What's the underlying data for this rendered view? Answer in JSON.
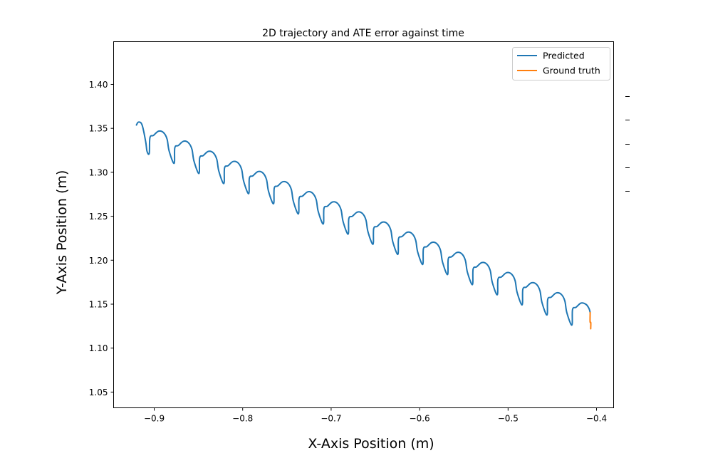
{
  "chart_data": {
    "type": "line",
    "title": "2D trajectory and ATE error against time",
    "xlabel": "X-Axis Position (m)",
    "ylabel": "Y-Axis Position (m)",
    "xlim": [
      -0.9459,
      -0.3807
    ],
    "ylim": [
      1.0321,
      1.4486
    ],
    "grid": false,
    "legend_position": "top-right",
    "xticks": [
      {
        "value": -0.9,
        "label": "−0.9"
      },
      {
        "value": -0.8,
        "label": "−0.8"
      },
      {
        "value": -0.7,
        "label": "−0.7"
      },
      {
        "value": -0.6,
        "label": "−0.6"
      },
      {
        "value": -0.5,
        "label": "−0.5"
      },
      {
        "value": -0.4,
        "label": "−0.4"
      }
    ],
    "yticks": [
      {
        "value": 1.05,
        "label": "1.05"
      },
      {
        "value": 1.1,
        "label": "1.10"
      },
      {
        "value": 1.15,
        "label": "1.15"
      },
      {
        "value": 1.2,
        "label": "1.20"
      },
      {
        "value": 1.25,
        "label": "1.25"
      },
      {
        "value": 1.3,
        "label": "1.30"
      },
      {
        "value": 1.35,
        "label": "1.35"
      },
      {
        "value": 1.4,
        "label": "1.40"
      }
    ],
    "series": [
      {
        "name": "Predicted",
        "color": "#1f77b4",
        "x": [
          -0.9201,
          -0.9177,
          -0.9137,
          -0.9097,
          -0.9081,
          -0.9056,
          -0.9048,
          -0.9008,
          -0.8951,
          -0.8895,
          -0.8855,
          -0.8831,
          -0.8775,
          -0.8767,
          -0.8727,
          -0.867,
          -0.8614,
          -0.8574,
          -0.855,
          -0.8494,
          -0.8486,
          -0.8446,
          -0.8389,
          -0.8333,
          -0.8293,
          -0.8269,
          -0.8213,
          -0.8205,
          -0.8165,
          -0.8108,
          -0.8052,
          -0.8012,
          -0.7988,
          -0.7932,
          -0.7924,
          -0.7884,
          -0.7827,
          -0.7771,
          -0.7731,
          -0.7707,
          -0.7651,
          -0.7643,
          -0.7603,
          -0.7546,
          -0.749,
          -0.745,
          -0.7426,
          -0.737,
          -0.7362,
          -0.7322,
          -0.7265,
          -0.7209,
          -0.7169,
          -0.7145,
          -0.7089,
          -0.7081,
          -0.7041,
          -0.6984,
          -0.6928,
          -0.6888,
          -0.6864,
          -0.6808,
          -0.68,
          -0.676,
          -0.6703,
          -0.6647,
          -0.6607,
          -0.6583,
          -0.6527,
          -0.6519,
          -0.6479,
          -0.6422,
          -0.6366,
          -0.6326,
          -0.6302,
          -0.6246,
          -0.6238,
          -0.6198,
          -0.6141,
          -0.6085,
          -0.6045,
          -0.6021,
          -0.5965,
          -0.5957,
          -0.5917,
          -0.586,
          -0.5804,
          -0.5764,
          -0.574,
          -0.5684,
          -0.5676,
          -0.5636,
          -0.5579,
          -0.5523,
          -0.5483,
          -0.5459,
          -0.5403,
          -0.5395,
          -0.5355,
          -0.5298,
          -0.5242,
          -0.5202,
          -0.5178,
          -0.5122,
          -0.5114,
          -0.5074,
          -0.5017,
          -0.4961,
          -0.4921,
          -0.4897,
          -0.4841,
          -0.4833,
          -0.4793,
          -0.4736,
          -0.468,
          -0.464,
          -0.4616,
          -0.456,
          -0.4552,
          -0.4512,
          -0.4455,
          -0.4399,
          -0.4359,
          -0.4335,
          -0.4279,
          -0.4271,
          -0.4231,
          -0.4174,
          -0.4118,
          -0.4085,
          -0.4072
        ],
        "y": [
          1.3538,
          1.3571,
          1.3538,
          1.3352,
          1.3238,
          1.3217,
          1.3395,
          1.342,
          1.3468,
          1.3452,
          1.3379,
          1.3241,
          1.3102,
          1.328,
          1.3305,
          1.3353,
          1.3337,
          1.3264,
          1.3126,
          1.2987,
          1.3165,
          1.319,
          1.3238,
          1.3222,
          1.3149,
          1.3011,
          1.2872,
          1.305,
          1.3075,
          1.3123,
          1.3107,
          1.3034,
          1.2896,
          1.2757,
          1.2935,
          1.296,
          1.3008,
          1.2992,
          1.2919,
          1.2781,
          1.2642,
          1.282,
          1.2845,
          1.2893,
          1.2877,
          1.2804,
          1.2666,
          1.2527,
          1.2705,
          1.273,
          1.2778,
          1.2762,
          1.2689,
          1.2551,
          1.2412,
          1.259,
          1.2615,
          1.2663,
          1.2647,
          1.2574,
          1.2436,
          1.2297,
          1.2475,
          1.25,
          1.2548,
          1.2532,
          1.2459,
          1.2321,
          1.2182,
          1.236,
          1.2385,
          1.2433,
          1.2417,
          1.2344,
          1.2206,
          1.2067,
          1.2245,
          1.227,
          1.2318,
          1.2302,
          1.2229,
          1.2091,
          1.1952,
          1.213,
          1.2155,
          1.2203,
          1.2187,
          1.2114,
          1.1976,
          1.1837,
          1.2015,
          1.204,
          1.2088,
          1.2072,
          1.1999,
          1.1861,
          1.1722,
          1.19,
          1.1925,
          1.1973,
          1.1957,
          1.1884,
          1.1746,
          1.1607,
          1.1785,
          1.181,
          1.1858,
          1.1842,
          1.1769,
          1.1631,
          1.1492,
          1.167,
          1.1695,
          1.1743,
          1.1727,
          1.1654,
          1.1516,
          1.1377,
          1.1555,
          1.158,
          1.1628,
          1.1612,
          1.1539,
          1.1401,
          1.1262,
          1.144,
          1.1465,
          1.1513,
          1.1497,
          1.145,
          1.1405
        ]
      },
      {
        "name": "Ground truth",
        "color": "#ff7f0e",
        "x": [
          -0.4072,
          -0.4073,
          -0.4065,
          -0.4066
        ],
        "y": [
          1.1405,
          1.13,
          1.129,
          1.122
        ]
      }
    ]
  }
}
